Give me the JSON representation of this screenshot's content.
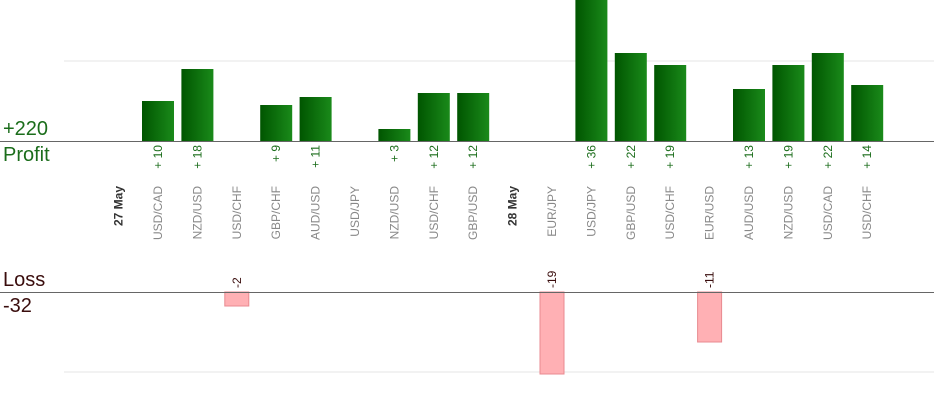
{
  "summary": {
    "profit_total": "+220",
    "profit_label": "Profit",
    "loss_label": "Loss",
    "loss_total": "-32"
  },
  "chart_data": {
    "type": "bar",
    "groups": [
      {
        "date": "27 May",
        "trades": [
          {
            "pair": "USD/CAD",
            "value": 10
          },
          {
            "pair": "NZD/USD",
            "value": 18
          },
          {
            "pair": "USD/CHF",
            "value": -2
          },
          {
            "pair": "GBP/CHF",
            "value": 9
          },
          {
            "pair": "AUD/USD",
            "value": 11
          },
          {
            "pair": "USD/JPY",
            "value": null
          },
          {
            "pair": "NZD/USD",
            "value": 3
          },
          {
            "pair": "USD/CHF",
            "value": 12
          },
          {
            "pair": "GBP/USD",
            "value": 12
          }
        ]
      },
      {
        "date": "28 May",
        "trades": [
          {
            "pair": "EUR/JPY",
            "value": -19
          },
          {
            "pair": "USD/JPY",
            "value": 36
          },
          {
            "pair": "GBP/USD",
            "value": 22
          },
          {
            "pair": "USD/CHF",
            "value": 19
          },
          {
            "pair": "EUR/USD",
            "value": -11
          },
          {
            "pair": "AUD/USD",
            "value": 13
          },
          {
            "pair": "NZD/USD",
            "value": 19
          },
          {
            "pair": "USD/CAD",
            "value": 22
          },
          {
            "pair": "USD/CHF",
            "value": 14
          }
        ]
      }
    ],
    "profit_axis_max": 20,
    "loss_axis_max": 20,
    "grid": true,
    "colors": {
      "profit_bar_dark": "#005500",
      "profit_bar_light": "#1a8a1a",
      "profit_text": "#1b6d1b",
      "loss_bar_fill": "#ffb0b4",
      "loss_bar_stroke": "#e88a90",
      "loss_text": "#3a0d0d",
      "pair_text": "#888888",
      "date_text": "#333333",
      "axis_line": "#666666",
      "grid_line": "#e6e6e6"
    }
  }
}
